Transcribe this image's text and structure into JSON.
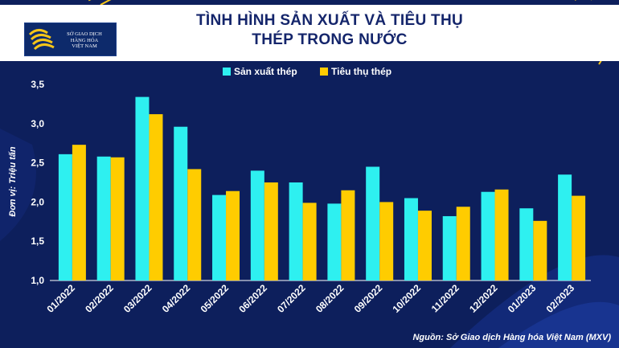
{
  "header": {
    "title_line1": "TÌNH HÌNH SẢN XUẤT VÀ TIÊU THỤ",
    "title_line2": "THÉP TRONG NƯỚC",
    "logo_line1": "SỞ GIAO DỊCH",
    "logo_line2": "HÀNG HÓA",
    "logo_line3": "VIỆT NAM"
  },
  "footer": {
    "source": "Nguồn: Sở Giao dịch Hàng hóa Việt Nam (MXV)"
  },
  "colors": {
    "background": "#0d1f5c",
    "production": "#2ef0f0",
    "consumption": "#ffcc00",
    "accent": "#f5c518",
    "title": "#14256b"
  },
  "chart_data": {
    "type": "bar",
    "ylabel": "Đơn vị: Triệu tấn",
    "ylim": [
      1.0,
      3.5
    ],
    "yticks": [
      "1,0",
      "1,5",
      "2,0",
      "2,5",
      "3,0",
      "3,5"
    ],
    "grid": false,
    "legend_position": "top",
    "categories": [
      "01/2022",
      "02/2022",
      "03/2022",
      "04/2022",
      "05/2022",
      "06/2022",
      "07/2022",
      "08/2022",
      "09/2022",
      "10/2022",
      "11/2022",
      "12/2022",
      "01/2023",
      "02/2023"
    ],
    "series": [
      {
        "name": "Sản xuất thép",
        "color": "#2ef0f0",
        "values": [
          2.61,
          2.58,
          3.34,
          2.96,
          2.09,
          2.4,
          2.25,
          1.98,
          2.45,
          2.05,
          1.82,
          2.13,
          1.92,
          2.35
        ]
      },
      {
        "name": "Tiêu thụ thép",
        "color": "#ffcc00",
        "values": [
          2.73,
          2.57,
          3.12,
          2.42,
          2.14,
          2.25,
          1.99,
          2.15,
          2.0,
          1.89,
          1.94,
          2.16,
          1.76,
          2.08
        ]
      }
    ]
  }
}
